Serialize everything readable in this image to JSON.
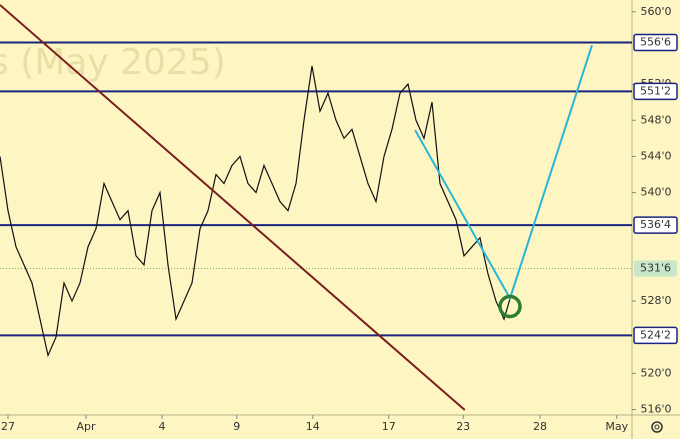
{
  "chart_data": {
    "type": "line",
    "watermark": "s (May 2025)",
    "x": [
      0,
      1,
      2,
      3,
      4,
      5,
      6,
      7,
      8,
      9,
      10,
      11,
      12,
      13,
      14,
      15,
      16,
      17,
      18,
      19,
      20,
      21,
      22,
      23,
      24,
      25,
      26,
      27,
      28,
      29,
      30,
      31,
      32,
      33,
      34,
      35,
      36,
      37,
      38,
      39,
      40,
      41,
      42,
      43,
      44,
      45,
      46,
      47,
      48,
      49,
      50,
      51,
      52,
      53,
      54,
      55,
      56,
      57,
      58,
      59,
      60,
      61,
      62,
      63,
      64,
      65
    ],
    "series": [
      {
        "color": "#111111",
        "values": [
          544,
          538,
          534,
          532,
          530,
          526,
          522,
          524,
          530,
          528,
          530,
          534,
          536,
          541,
          539,
          537,
          538,
          533,
          532,
          538,
          540,
          532,
          526,
          528,
          530,
          536,
          538,
          542,
          541,
          543,
          544,
          541,
          540,
          543,
          541,
          539,
          538,
          541,
          548,
          554,
          549,
          551,
          548,
          546,
          547,
          544,
          541,
          539,
          544,
          547,
          551,
          552,
          548,
          546,
          550,
          541,
          539,
          537,
          533,
          534,
          535,
          531,
          528,
          526,
          529,
          531.6
        ]
      }
    ],
    "xlim": [
      0,
      79
    ],
    "ylim": [
      515.4,
      561.3
    ],
    "xticks": [
      {
        "value": 1,
        "label": "27"
      },
      {
        "value": 10.75,
        "label": "Apr"
      },
      {
        "value": 20.25,
        "label": "4"
      },
      {
        "value": 29.6,
        "label": "9"
      },
      {
        "value": 39.1,
        "label": "14"
      },
      {
        "value": 48.6,
        "label": "17"
      },
      {
        "value": 57.9,
        "label": "23"
      },
      {
        "value": 67.5,
        "label": "28"
      },
      {
        "value": 77.1,
        "label": "May"
      }
    ],
    "yticks": [
      {
        "value": 560,
        "label": "560'0"
      },
      {
        "value": 552,
        "label": "552'0"
      },
      {
        "value": 548,
        "label": "548'0"
      },
      {
        "value": 544,
        "label": "544'0"
      },
      {
        "value": 540,
        "label": "540'0"
      },
      {
        "value": 528,
        "label": "528'0"
      },
      {
        "value": 520,
        "label": "520'0"
      },
      {
        "value": 516,
        "label": "516'0"
      }
    ],
    "levels": [
      {
        "value": 556.6,
        "label": "556'6"
      },
      {
        "value": 551.2,
        "label": "551'2"
      },
      {
        "value": 536.4,
        "label": "536'4"
      },
      {
        "value": 524.2,
        "label": "524'2"
      }
    ],
    "level_color": "#1a237e",
    "last_price": {
      "value": 531.6,
      "label": "531'6"
    },
    "trendlines": [
      {
        "color": "#7b1e1e",
        "x": [
          0,
          58.1
        ],
        "y": [
          560.75,
          515.95
        ]
      },
      {
        "color": "#29b6d6",
        "x": [
          51.9,
          63.75,
          74
        ],
        "y": [
          546.9,
          528.3,
          556.3
        ]
      }
    ],
    "marker": {
      "color": "#2e7d32",
      "x": 63.75,
      "y": 527.4
    }
  }
}
